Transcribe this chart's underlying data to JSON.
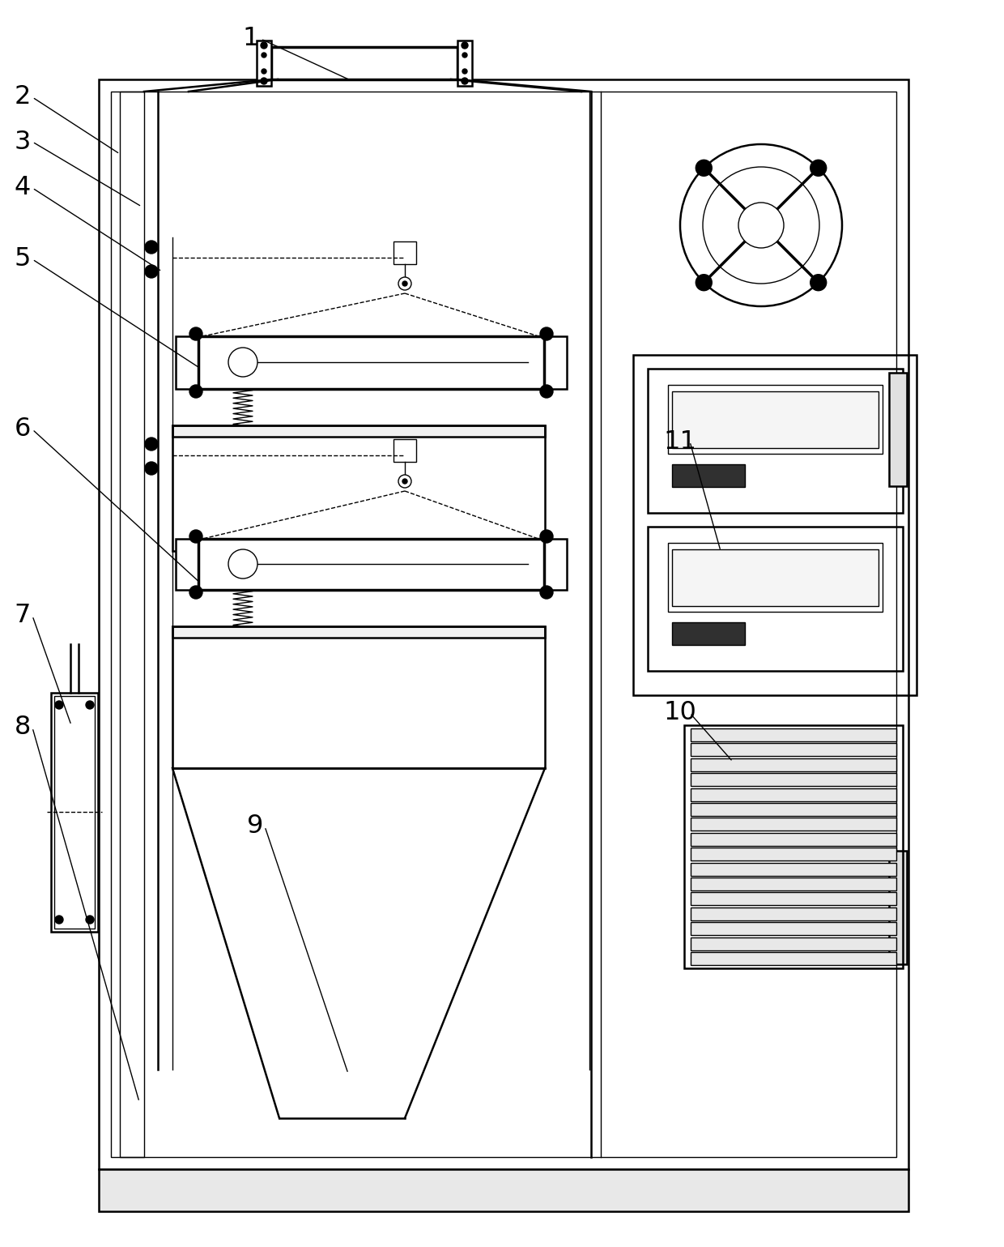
{
  "bg_color": "#ffffff",
  "line_color": "#000000",
  "figsize": [
    12.4,
    15.39
  ],
  "dpi": 100,
  "labels": [
    [
      "1",
      310,
      48,
      435,
      100
    ],
    [
      "2",
      28,
      120,
      148,
      190
    ],
    [
      "3",
      28,
      175,
      175,
      255
    ],
    [
      "4",
      28,
      232,
      200,
      335
    ],
    [
      "5",
      28,
      320,
      248,
      455
    ],
    [
      "6",
      28,
      530,
      248,
      720
    ],
    [
      "7",
      28,
      760,
      88,
      895
    ],
    [
      "8",
      28,
      898,
      172,
      1360
    ],
    [
      "9",
      315,
      1020,
      430,
      1325
    ],
    [
      "10",
      840,
      880,
      905,
      940
    ],
    [
      "11",
      840,
      545,
      890,
      680
    ]
  ]
}
